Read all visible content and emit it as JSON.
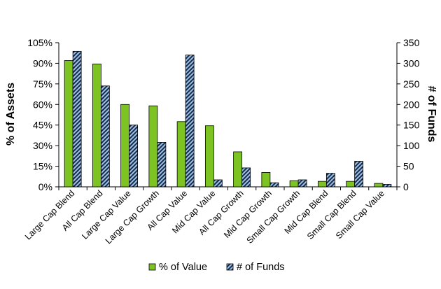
{
  "chart_data": {
    "type": "bar",
    "categories": [
      "Large Cap Blend",
      "All Cap Blend",
      "Large Cap Value",
      "Large Cap Growth",
      "All Cap Value",
      "Mid Cap Value",
      "All Cap Growth",
      "Mid Cap Growth",
      "Small Cap Growth",
      "Mid Cap Blend",
      "Small Cap Blend",
      "Small Cap Value"
    ],
    "series": [
      {
        "name": "% of Value",
        "axis": "left",
        "color": "#7dc423",
        "values": [
          92,
          89.5,
          60,
          59,
          47.5,
          44.5,
          25.5,
          10.5,
          4.5,
          4,
          4,
          2.5
        ]
      },
      {
        "name": "# of Funds",
        "axis": "right",
        "color": "#1a2a4a",
        "pattern_color": "#9cc3e6",
        "values": [
          329,
          245,
          150,
          108,
          320,
          17,
          46,
          10,
          17,
          33,
          62,
          6
        ]
      }
    ],
    "ylabel_left": "% of Assets",
    "ylabel_right": "# of Funds",
    "ylim_left": [
      0,
      105
    ],
    "ylim_right": [
      0,
      350
    ],
    "yticks_left": [
      "0%",
      "15%",
      "30%",
      "45%",
      "60%",
      "75%",
      "90%",
      "105%"
    ],
    "yticks_right": [
      "0",
      "50",
      "100",
      "150",
      "200",
      "250",
      "300",
      "350"
    ],
    "grid": false,
    "legend_position": "bottom"
  }
}
